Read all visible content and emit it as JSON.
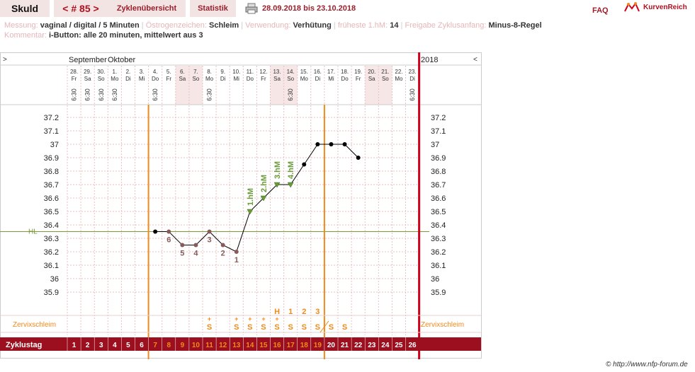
{
  "header": {
    "title": "Skuld",
    "cycle_nav": "< # 85 >",
    "tab_overview": "Zyklenübersicht",
    "tab_stats": "Statistik",
    "date_range": "28.09.2018 bis 23.10.2018",
    "faq": "FAQ",
    "logo_text": "KurvenReich"
  },
  "meta": {
    "messung_label": "Messung:",
    "messung_value": "vaginal / digital / 5 Minuten",
    "oestrogen_label": "Östrogenzeichen:",
    "oestrogen_value": "Schleim",
    "verwendung_label": "Verwendung:",
    "verwendung_value": "Verhütung",
    "fhm_label": "früheste 1.hM:",
    "fhm_value": "14",
    "freigabe_label": "Freigabe Zyklusanfang:",
    "freigabe_value": "Minus-8-Regel",
    "kommentar_label": "Kommentar:",
    "kommentar_value": "i-Button: alle 20 minuten, mittelwert aus 3"
  },
  "chart_data": {
    "type": "line",
    "title": "",
    "ylabel": "",
    "ylim": [
      35.8,
      37.3
    ],
    "yticks": [
      "37.2",
      "37.1",
      "37",
      "36.9",
      "36.8",
      "36.7",
      "36.6",
      "36.5",
      "36.4",
      "36.3",
      "36.2",
      "36.1",
      "36",
      "35.9"
    ],
    "yticks_right": [
      "37.2",
      "37.1",
      "37",
      "36.9",
      "36.8",
      "36.7",
      "36.6",
      "36.5",
      "36.4",
      "36.3",
      "36.2",
      "36.1",
      "36",
      "35.9"
    ],
    "month_labels": [
      "September",
      "Oktober"
    ],
    "year_label": "2018",
    "nav_left": ">",
    "nav_right": "<",
    "days": [
      {
        "date": "28.",
        "wd": "Fr",
        "time": "6:30",
        "we": false
      },
      {
        "date": "29.",
        "wd": "Sa",
        "time": "6:30",
        "we": false
      },
      {
        "date": "30.",
        "wd": "So",
        "time": "6:30",
        "we": false
      },
      {
        "date": "1.",
        "wd": "Mo",
        "time": "6:30",
        "we": false
      },
      {
        "date": "2.",
        "wd": "Di",
        "time": "",
        "we": false
      },
      {
        "date": "3.",
        "wd": "Mi",
        "time": "",
        "we": false
      },
      {
        "date": "4.",
        "wd": "Do",
        "time": "6:30",
        "we": false
      },
      {
        "date": "5.",
        "wd": "Fr",
        "time": "",
        "we": false
      },
      {
        "date": "6.",
        "wd": "Sa",
        "time": "",
        "we": true
      },
      {
        "date": "7.",
        "wd": "So",
        "time": "",
        "we": true
      },
      {
        "date": "8.",
        "wd": "Mo",
        "time": "6:30",
        "we": false
      },
      {
        "date": "9.",
        "wd": "Di",
        "time": "",
        "we": false
      },
      {
        "date": "10.",
        "wd": "Mi",
        "time": "",
        "we": false
      },
      {
        "date": "11.",
        "wd": "Do",
        "time": "",
        "we": false
      },
      {
        "date": "12.",
        "wd": "Fr",
        "time": "",
        "we": false
      },
      {
        "date": "13.",
        "wd": "Sa",
        "time": "",
        "we": true
      },
      {
        "date": "14.",
        "wd": "So",
        "time": "6:30",
        "we": true
      },
      {
        "date": "15.",
        "wd": "Mo",
        "time": "",
        "we": false
      },
      {
        "date": "16.",
        "wd": "Di",
        "time": "",
        "we": false
      },
      {
        "date": "17.",
        "wd": "Mi",
        "time": "",
        "we": false
      },
      {
        "date": "18.",
        "wd": "Do",
        "time": "",
        "we": false
      },
      {
        "date": "19.",
        "wd": "Fr",
        "time": "",
        "we": false
      },
      {
        "date": "20.",
        "wd": "Sa",
        "time": "",
        "we": true
      },
      {
        "date": "21.",
        "wd": "So",
        "time": "",
        "we": true
      },
      {
        "date": "22.",
        "wd": "Mo",
        "time": "",
        "we": false
      },
      {
        "date": "23.",
        "wd": "Di",
        "time": "6:30",
        "we": false
      }
    ],
    "cycle_days": [
      "1",
      "2",
      "3",
      "4",
      "5",
      "6",
      "7",
      "8",
      "9",
      "10",
      "11",
      "12",
      "13",
      "14",
      "15",
      "16",
      "17",
      "18",
      "19",
      "20",
      "21",
      "22",
      "23",
      "24",
      "25",
      "26"
    ],
    "cycle_day_label": "Zyklustag",
    "temperatures": [
      null,
      null,
      null,
      null,
      null,
      null,
      36.35,
      36.35,
      36.25,
      36.25,
      36.35,
      36.25,
      36.2,
      36.5,
      36.6,
      36.7,
      36.7,
      36.85,
      37.0,
      37.0,
      37.0,
      36.9,
      null,
      null,
      null,
      null
    ],
    "hm_days": [
      {
        "day": 14,
        "label": "1.hM"
      },
      {
        "day": 15,
        "label": "2.hM"
      },
      {
        "day": 16,
        "label": "3.hM"
      },
      {
        "day": 17,
        "label": "4.hM"
      }
    ],
    "low_labels": [
      {
        "day": 8,
        "label": "6"
      },
      {
        "day": 9,
        "label": "5"
      },
      {
        "day": 10,
        "label": "4"
      },
      {
        "day": 11,
        "label": "3"
      },
      {
        "day": 12,
        "label": "2"
      },
      {
        "day": 13,
        "label": "1"
      }
    ],
    "hl_value": 36.35,
    "hl_label": "HL",
    "vline_days": [
      7,
      20
    ],
    "cervix_label": "Zervixschleim",
    "cervix": [
      {
        "day": 11,
        "sym": "S",
        "plus": "+"
      },
      {
        "day": 13,
        "sym": "S",
        "plus": "+"
      },
      {
        "day": 14,
        "sym": "S",
        "plus": "+"
      },
      {
        "day": 15,
        "sym": "S",
        "plus": "+"
      },
      {
        "day": 16,
        "sym": "S",
        "plus": "+"
      },
      {
        "day": 17,
        "sym": "S",
        "plus": ""
      },
      {
        "day": 18,
        "sym": "S",
        "plus": ""
      },
      {
        "day": 19,
        "sym": "S",
        "plus": ""
      },
      {
        "day": 20,
        "sym": "S",
        "plus": ""
      },
      {
        "day": 21,
        "sym": "S",
        "plus": ""
      }
    ],
    "peak_labels": [
      {
        "day": 16,
        "label": "H"
      },
      {
        "day": 17,
        "label": "1"
      },
      {
        "day": 18,
        "label": "2"
      },
      {
        "day": 19,
        "label": "3"
      }
    ],
    "colors": {
      "orange": "#f08a1a",
      "red": "#d0021b",
      "curve": "#000000",
      "low": "#8a5a5a",
      "hm": "#6a9a3a",
      "bar": "#9c0f1e",
      "grid": "#e8c0c0"
    }
  },
  "footer": {
    "copyright": "© http://www.nfp-forum.de"
  }
}
